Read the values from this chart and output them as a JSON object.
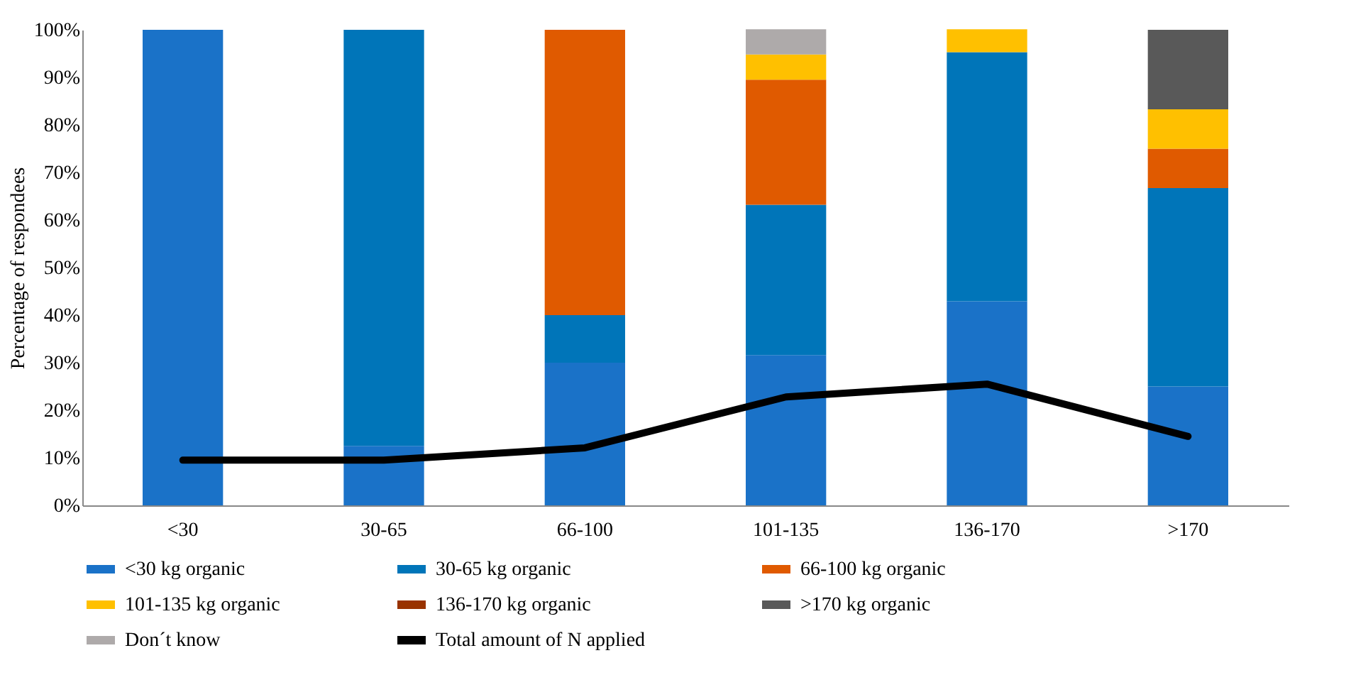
{
  "chart_data": {
    "type": "bar",
    "stacked": true,
    "ylabel": "Percentage of respondees",
    "categories": [
      "<30",
      "30-65",
      "66-100",
      "101-135",
      "136-170",
      ">170"
    ],
    "ylim": [
      0,
      100
    ],
    "yticks": [
      {
        "value": 0,
        "label": "0%"
      },
      {
        "value": 10,
        "label": "10%"
      },
      {
        "value": 20,
        "label": "20%"
      },
      {
        "value": 30,
        "label": "30%"
      },
      {
        "value": 40,
        "label": "40%"
      },
      {
        "value": 50,
        "label": "50%"
      },
      {
        "value": 60,
        "label": "60%"
      },
      {
        "value": 70,
        "label": "70%"
      },
      {
        "value": 80,
        "label": "80%"
      },
      {
        "value": 90,
        "label": "90%"
      },
      {
        "value": 100,
        "label": "100%"
      }
    ],
    "legend": "bottom",
    "series": [
      {
        "name": "<30 kg organic",
        "color": "#1a72c8",
        "values": [
          100,
          12.5,
          30,
          31.6,
          42.9,
          25
        ]
      },
      {
        "name": "30-65 kg organic",
        "color": "#0075b9",
        "values": [
          null,
          87.5,
          10,
          31.6,
          52.4,
          41.7
        ]
      },
      {
        "name": "66-100 kg organic",
        "color": "#e05a00",
        "values": [
          null,
          null,
          60,
          26.3,
          null,
          8.3
        ]
      },
      {
        "name": "101-135 kg organic",
        "color": "#ffc000",
        "values": [
          null,
          null,
          null,
          5.3,
          4.8,
          8.3
        ]
      },
      {
        "name": "136-170 kg organic",
        "color": "#993300",
        "values": [
          null,
          null,
          null,
          null,
          null,
          null
        ]
      },
      {
        "name": ">170 kg organic",
        "color": "#595959",
        "values": [
          null,
          null,
          null,
          null,
          null,
          16.7
        ]
      },
      {
        "name": "Don´t know",
        "color": "#aeaaaa",
        "values": [
          null,
          null,
          null,
          5.3,
          null,
          null
        ]
      },
      {
        "name": "Total amount of N applied",
        "type": "line",
        "color": "#000000",
        "values": [
          9.5,
          9.5,
          12.1,
          22.8,
          25.5,
          14.5
        ]
      }
    ]
  }
}
